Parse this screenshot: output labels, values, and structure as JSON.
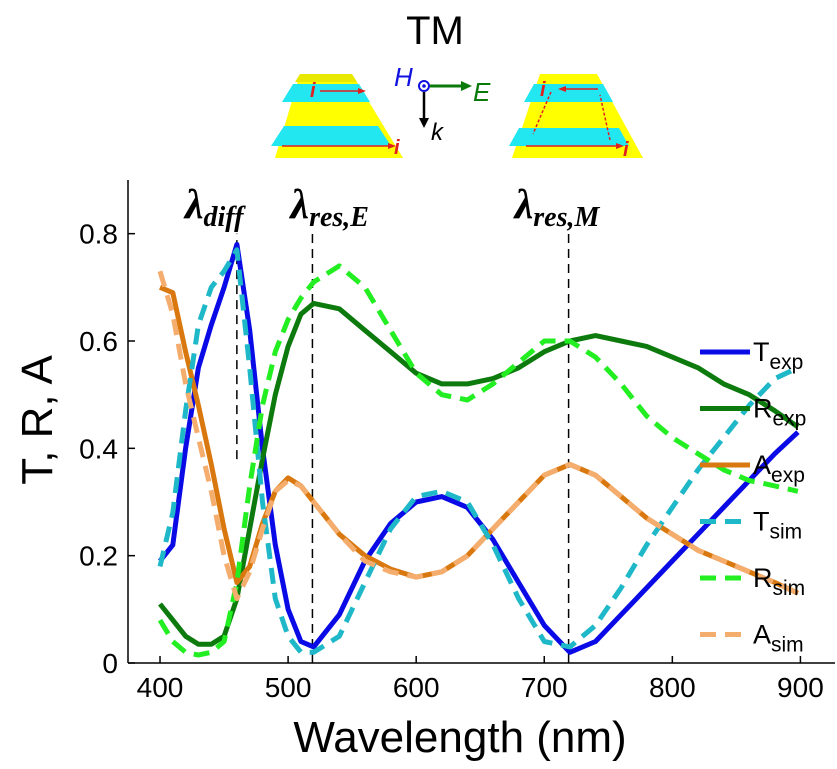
{
  "chart_data": {
    "type": "line",
    "title": "TM",
    "xlabel": "Wavelength (nm)",
    "ylabel": "T, R, A",
    "x": [
      400,
      410,
      420,
      430,
      440,
      450,
      460,
      470,
      480,
      490,
      500,
      510,
      520,
      540,
      560,
      580,
      600,
      620,
      640,
      660,
      680,
      700,
      720,
      740,
      760,
      780,
      800,
      820,
      840,
      860,
      880,
      898
    ],
    "series": [
      {
        "name": "T",
        "subscript": "exp",
        "color": "#0a0ae6",
        "dash": false,
        "values": [
          0.19,
          0.22,
          0.4,
          0.55,
          0.63,
          0.7,
          0.78,
          0.62,
          0.4,
          0.22,
          0.1,
          0.04,
          0.03,
          0.09,
          0.19,
          0.26,
          0.3,
          0.31,
          0.29,
          0.23,
          0.15,
          0.07,
          0.02,
          0.04,
          0.09,
          0.14,
          0.19,
          0.24,
          0.29,
          0.34,
          0.39,
          0.43
        ]
      },
      {
        "name": "R",
        "subscript": "exp",
        "color": "#0c7a0c",
        "dash": false,
        "values": [
          0.11,
          0.08,
          0.05,
          0.035,
          0.035,
          0.05,
          0.12,
          0.25,
          0.38,
          0.5,
          0.59,
          0.65,
          0.67,
          0.66,
          0.62,
          0.58,
          0.54,
          0.52,
          0.52,
          0.53,
          0.55,
          0.58,
          0.6,
          0.61,
          0.6,
          0.59,
          0.57,
          0.55,
          0.52,
          0.5,
          0.47,
          0.44
        ]
      },
      {
        "name": "A",
        "subscript": "exp",
        "color": "#d9780f",
        "dash": false,
        "values": [
          0.7,
          0.69,
          0.58,
          0.48,
          0.37,
          0.25,
          0.15,
          0.18,
          0.26,
          0.32,
          0.345,
          0.33,
          0.3,
          0.24,
          0.2,
          0.175,
          0.16,
          0.17,
          0.2,
          0.25,
          0.3,
          0.35,
          0.37,
          0.35,
          0.31,
          0.27,
          0.24,
          0.21,
          0.19,
          0.17,
          0.15,
          0.13
        ]
      },
      {
        "name": "T",
        "subscript": "sim",
        "color": "#1fb8c8",
        "dash": true,
        "values": [
          0.18,
          0.28,
          0.47,
          0.63,
          0.7,
          0.73,
          0.77,
          0.55,
          0.3,
          0.12,
          0.05,
          0.02,
          0.02,
          0.05,
          0.15,
          0.25,
          0.31,
          0.32,
          0.3,
          0.22,
          0.12,
          0.04,
          0.03,
          0.07,
          0.14,
          0.22,
          0.29,
          0.36,
          0.42,
          0.48,
          0.53,
          0.55
        ]
      },
      {
        "name": "R",
        "subscript": "sim",
        "color": "#22ee22",
        "dash": true,
        "values": [
          0.08,
          0.04,
          0.02,
          0.015,
          0.02,
          0.04,
          0.15,
          0.33,
          0.48,
          0.58,
          0.64,
          0.68,
          0.71,
          0.74,
          0.7,
          0.62,
          0.54,
          0.5,
          0.49,
          0.52,
          0.56,
          0.6,
          0.6,
          0.57,
          0.52,
          0.46,
          0.42,
          0.39,
          0.36,
          0.34,
          0.33,
          0.32
        ]
      },
      {
        "name": "A",
        "subscript": "sim",
        "color": "#f5ad6e",
        "dash": true,
        "values": [
          0.73,
          0.65,
          0.52,
          0.42,
          0.32,
          0.2,
          0.12,
          0.17,
          0.25,
          0.32,
          0.34,
          0.33,
          0.3,
          0.24,
          0.19,
          0.17,
          0.16,
          0.17,
          0.2,
          0.25,
          0.3,
          0.35,
          0.37,
          0.35,
          0.31,
          0.27,
          0.24,
          0.21,
          0.19,
          0.17,
          0.15,
          0.13
        ]
      }
    ],
    "xlim": [
      375,
      927
    ],
    "xticks": [
      400,
      500,
      600,
      700,
      800,
      900
    ],
    "ylim": [
      0,
      0.9
    ],
    "yticks": [
      0,
      0.2,
      0.4,
      0.6,
      0.8
    ],
    "annotations": [
      {
        "x": 460,
        "y0": 0.38,
        "y1": 0.8,
        "label": "λ",
        "subscript": "diff"
      },
      {
        "x": 519,
        "y0": 0,
        "y1": 0.8,
        "label": "λ",
        "subscript": "res,E"
      },
      {
        "x": 719,
        "y0": 0,
        "y1": 0.8,
        "label": "λ",
        "subscript": "res,M"
      }
    ],
    "inset": {
      "h": "H",
      "e": "E",
      "k": "k",
      "i": "i"
    }
  }
}
